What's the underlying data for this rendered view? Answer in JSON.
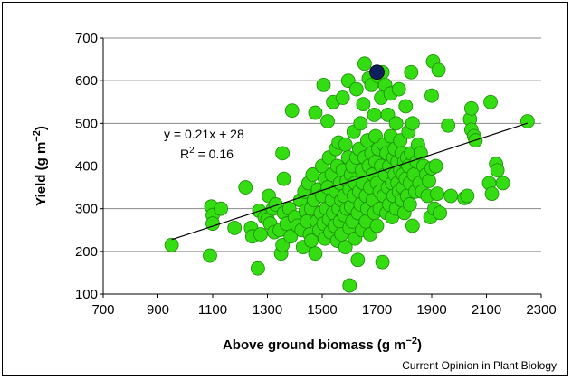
{
  "chart_data": {
    "type": "scatter",
    "xlabel": "Above ground biomass",
    "xlabel_unit": "(g m",
    "xlabel_exp": "−2",
    "xlabel_close": ")",
    "ylabel": "Yield",
    "ylabel_unit": "(g m",
    "ylabel_exp": "−2",
    "ylabel_close": ")",
    "xlim": [
      700,
      2300
    ],
    "ylim": [
      100,
      700
    ],
    "xticks": [
      "700",
      "900",
      "1100",
      "1300",
      "1500",
      "1700",
      "1900",
      "2100",
      "2300"
    ],
    "yticks": [
      "100",
      "200",
      "300",
      "400",
      "500",
      "600",
      "700"
    ],
    "grid": "horizontal",
    "point_color": "#33dd11",
    "highlight_color": "#0d1f5c",
    "trendline": {
      "slope": 0.21,
      "intercept": 28,
      "x_range": [
        950,
        2250
      ]
    },
    "equation_text": "y = 0.21x + 28",
    "r2_label": "R",
    "r2_sup": "2",
    "r2_value": " = 0.16",
    "highlight_point": {
      "x": 1700,
      "y": 620
    },
    "points": [
      [
        950,
        215
      ],
      [
        1090,
        190
      ],
      [
        1095,
        305
      ],
      [
        1100,
        285
      ],
      [
        1100,
        265
      ],
      [
        1130,
        300
      ],
      [
        1180,
        255
      ],
      [
        1220,
        350
      ],
      [
        1240,
        255
      ],
      [
        1245,
        235
      ],
      [
        1265,
        160
      ],
      [
        1270,
        295
      ],
      [
        1275,
        240
      ],
      [
        1290,
        280
      ],
      [
        1300,
        275
      ],
      [
        1305,
        330
      ],
      [
        1310,
        265
      ],
      [
        1320,
        300
      ],
      [
        1325,
        245
      ],
      [
        1330,
        310
      ],
      [
        1345,
        250
      ],
      [
        1350,
        195
      ],
      [
        1355,
        215
      ],
      [
        1355,
        430
      ],
      [
        1360,
        370
      ],
      [
        1360,
        290
      ],
      [
        1370,
        265
      ],
      [
        1380,
        300
      ],
      [
        1385,
        235
      ],
      [
        1390,
        530
      ],
      [
        1400,
        280
      ],
      [
        1410,
        260
      ],
      [
        1420,
        320
      ],
      [
        1425,
        250
      ],
      [
        1430,
        210
      ],
      [
        1435,
        340
      ],
      [
        1440,
        295
      ],
      [
        1445,
        270
      ],
      [
        1450,
        360
      ],
      [
        1455,
        240
      ],
      [
        1460,
        300
      ],
      [
        1460,
        225
      ],
      [
        1465,
        380
      ],
      [
        1470,
        320
      ],
      [
        1475,
        195
      ],
      [
        1475,
        525
      ],
      [
        1480,
        270
      ],
      [
        1485,
        345
      ],
      [
        1490,
        250
      ],
      [
        1495,
        290
      ],
      [
        1500,
        400
      ],
      [
        1500,
        330
      ],
      [
        1505,
        590
      ],
      [
        1505,
        265
      ],
      [
        1510,
        230
      ],
      [
        1510,
        370
      ],
      [
        1515,
        300
      ],
      [
        1520,
        350
      ],
      [
        1520,
        505
      ],
      [
        1525,
        420
      ],
      [
        1525,
        275
      ],
      [
        1530,
        245
      ],
      [
        1535,
        320
      ],
      [
        1535,
        380
      ],
      [
        1540,
        550
      ],
      [
        1540,
        290
      ],
      [
        1545,
        260
      ],
      [
        1550,
        340
      ],
      [
        1550,
        440
      ],
      [
        1555,
        225
      ],
      [
        1555,
        400
      ],
      [
        1560,
        300
      ],
      [
        1560,
        455
      ],
      [
        1565,
        360
      ],
      [
        1565,
        270
      ],
      [
        1570,
        320
      ],
      [
        1570,
        240
      ],
      [
        1575,
        560
      ],
      [
        1575,
        390
      ],
      [
        1580,
        330
      ],
      [
        1580,
        285
      ],
      [
        1585,
        450
      ],
      [
        1585,
        210
      ],
      [
        1590,
        365
      ],
      [
        1590,
        300
      ],
      [
        1595,
        600
      ],
      [
        1595,
        420
      ],
      [
        1600,
        255
      ],
      [
        1600,
        345
      ],
      [
        1600,
        120
      ],
      [
        1605,
        380
      ],
      [
        1605,
        305
      ],
      [
        1610,
        400
      ],
      [
        1610,
        270
      ],
      [
        1615,
        480
      ],
      [
        1615,
        330
      ],
      [
        1620,
        230
      ],
      [
        1620,
        360
      ],
      [
        1625,
        580
      ],
      [
        1625,
        420
      ],
      [
        1630,
        290
      ],
      [
        1630,
        180
      ],
      [
        1635,
        440
      ],
      [
        1635,
        340
      ],
      [
        1640,
        500
      ],
      [
        1640,
        310
      ],
      [
        1645,
        390
      ],
      [
        1645,
        250
      ],
      [
        1650,
        545
      ],
      [
        1650,
        360
      ],
      [
        1655,
        640
      ],
      [
        1655,
        420
      ],
      [
        1660,
        270
      ],
      [
        1660,
        330
      ],
      [
        1665,
        460
      ],
      [
        1665,
        300
      ],
      [
        1670,
        400
      ],
      [
        1670,
        605
      ],
      [
        1675,
        350
      ],
      [
        1675,
        240
      ],
      [
        1680,
        590
      ],
      [
        1680,
        430
      ],
      [
        1685,
        320
      ],
      [
        1685,
        380
      ],
      [
        1690,
        520
      ],
      [
        1690,
        290
      ],
      [
        1695,
        470
      ],
      [
        1695,
        410
      ],
      [
        1700,
        360
      ],
      [
        1700,
        260
      ],
      [
        1705,
        610
      ],
      [
        1705,
        440
      ],
      [
        1710,
        340
      ],
      [
        1710,
        300
      ],
      [
        1715,
        560
      ],
      [
        1715,
        400
      ],
      [
        1720,
        620
      ],
      [
        1720,
        175
      ],
      [
        1725,
        450
      ],
      [
        1725,
        330
      ],
      [
        1730,
        590
      ],
      [
        1730,
        380
      ],
      [
        1735,
        290
      ],
      [
        1735,
        430
      ],
      [
        1740,
        520
      ],
      [
        1740,
        350
      ],
      [
        1745,
        400
      ],
      [
        1745,
        310
      ],
      [
        1750,
        470
      ],
      [
        1750,
        570
      ],
      [
        1755,
        360
      ],
      [
        1755,
        280
      ],
      [
        1760,
        420
      ],
      [
        1760,
        330
      ],
      [
        1765,
        440
      ],
      [
        1765,
        380
      ],
      [
        1770,
        500
      ],
      [
        1770,
        300
      ],
      [
        1775,
        360
      ],
      [
        1775,
        410
      ],
      [
        1780,
        580
      ],
      [
        1780,
        340
      ],
      [
        1785,
        460
      ],
      [
        1785,
        390
      ],
      [
        1790,
        320
      ],
      [
        1790,
        430
      ],
      [
        1795,
        380
      ],
      [
        1795,
        350
      ],
      [
        1800,
        410
      ],
      [
        1800,
        290
      ],
      [
        1805,
        540
      ],
      [
        1805,
        370
      ],
      [
        1810,
        420
      ],
      [
        1810,
        330
      ],
      [
        1815,
        480
      ],
      [
        1815,
        400
      ],
      [
        1820,
        360
      ],
      [
        1820,
        310
      ],
      [
        1825,
        620
      ],
      [
        1825,
        430
      ],
      [
        1830,
        500
      ],
      [
        1830,
        260
      ],
      [
        1835,
        380
      ],
      [
        1840,
        340
      ],
      [
        1845,
        410
      ],
      [
        1850,
        450
      ],
      [
        1855,
        360
      ],
      [
        1860,
        430
      ],
      [
        1865,
        340
      ],
      [
        1870,
        400
      ],
      [
        1880,
        380
      ],
      [
        1885,
        330
      ],
      [
        1890,
        365
      ],
      [
        1895,
        280
      ],
      [
        1900,
        565
      ],
      [
        1900,
        395
      ],
      [
        1905,
        645
      ],
      [
        1910,
        300
      ],
      [
        1915,
        400
      ],
      [
        1920,
        335
      ],
      [
        1925,
        625
      ],
      [
        1930,
        290
      ],
      [
        1960,
        495
      ],
      [
        1970,
        330
      ],
      [
        2020,
        325
      ],
      [
        2030,
        330
      ],
      [
        2040,
        510
      ],
      [
        2045,
        535
      ],
      [
        2045,
        485
      ],
      [
        2055,
        470
      ],
      [
        2060,
        460
      ],
      [
        2110,
        360
      ],
      [
        2115,
        550
      ],
      [
        2120,
        335
      ],
      [
        2135,
        405
      ],
      [
        2140,
        390
      ],
      [
        2160,
        360
      ],
      [
        2250,
        505
      ]
    ]
  },
  "credit": "Current Opinion in Plant Biology"
}
